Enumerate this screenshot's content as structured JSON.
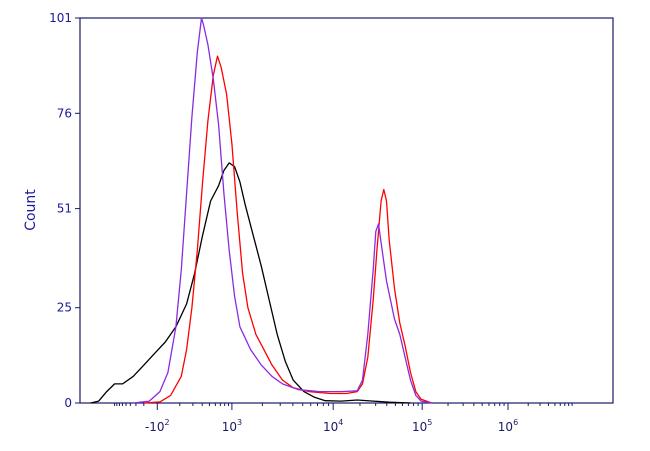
{
  "chart_data": {
    "type": "line",
    "ylabel": "Count",
    "ylim": [
      0,
      101
    ],
    "yticks": [
      {
        "value": 0,
        "label": "0"
      },
      {
        "value": 25,
        "label": "25"
      },
      {
        "value": 51,
        "label": "51"
      },
      {
        "value": 76,
        "label": "76"
      },
      {
        "value": 101,
        "label": "101"
      }
    ],
    "x_scale": "biexponential",
    "xticks": [
      {
        "pos": 0.145,
        "base": "-10",
        "exp": "2"
      },
      {
        "pos": 0.285,
        "base": "10",
        "exp": "3"
      },
      {
        "pos": 0.475,
        "base": "10",
        "exp": "4"
      },
      {
        "pos": 0.642,
        "base": "10",
        "exp": "5"
      },
      {
        "pos": 0.803,
        "base": "10",
        "exp": "6"
      }
    ],
    "series": [
      {
        "color": "#000000",
        "points": [
          [
            0.02,
            0
          ],
          [
            0.035,
            0.5
          ],
          [
            0.05,
            3
          ],
          [
            0.065,
            5
          ],
          [
            0.08,
            5
          ],
          [
            0.1,
            7
          ],
          [
            0.12,
            10
          ],
          [
            0.14,
            13
          ],
          [
            0.16,
            16
          ],
          [
            0.18,
            20
          ],
          [
            0.2,
            26
          ],
          [
            0.215,
            34
          ],
          [
            0.23,
            44
          ],
          [
            0.245,
            53
          ],
          [
            0.26,
            57
          ],
          [
            0.27,
            61
          ],
          [
            0.28,
            63
          ],
          [
            0.29,
            62
          ],
          [
            0.3,
            58
          ],
          [
            0.31,
            52
          ],
          [
            0.325,
            44
          ],
          [
            0.34,
            36
          ],
          [
            0.355,
            27
          ],
          [
            0.37,
            18
          ],
          [
            0.385,
            11
          ],
          [
            0.4,
            6
          ],
          [
            0.42,
            3
          ],
          [
            0.44,
            1.5
          ],
          [
            0.46,
            0.6
          ],
          [
            0.49,
            0.5
          ],
          [
            0.52,
            0.8
          ],
          [
            0.55,
            0.5
          ],
          [
            0.58,
            0.2
          ],
          [
            0.62,
            0
          ]
        ]
      },
      {
        "color": "#ff0000",
        "points": [
          [
            0.12,
            0
          ],
          [
            0.15,
            0.3
          ],
          [
            0.17,
            2
          ],
          [
            0.19,
            7
          ],
          [
            0.2,
            14
          ],
          [
            0.21,
            25
          ],
          [
            0.22,
            40
          ],
          [
            0.23,
            58
          ],
          [
            0.24,
            74
          ],
          [
            0.25,
            86
          ],
          [
            0.258,
            91
          ],
          [
            0.265,
            88
          ],
          [
            0.275,
            81
          ],
          [
            0.285,
            68
          ],
          [
            0.295,
            50
          ],
          [
            0.305,
            34
          ],
          [
            0.315,
            25
          ],
          [
            0.33,
            18
          ],
          [
            0.345,
            14
          ],
          [
            0.36,
            10
          ],
          [
            0.38,
            6
          ],
          [
            0.4,
            4
          ],
          [
            0.43,
            3
          ],
          [
            0.47,
            2.5
          ],
          [
            0.5,
            2.5
          ],
          [
            0.52,
            3
          ],
          [
            0.53,
            5
          ],
          [
            0.54,
            12
          ],
          [
            0.55,
            27
          ],
          [
            0.557,
            40
          ],
          [
            0.565,
            53
          ],
          [
            0.57,
            56
          ],
          [
            0.575,
            53
          ],
          [
            0.58,
            43
          ],
          [
            0.59,
            30
          ],
          [
            0.6,
            21
          ],
          [
            0.61,
            15
          ],
          [
            0.62,
            8
          ],
          [
            0.63,
            3
          ],
          [
            0.64,
            1
          ],
          [
            0.66,
            0
          ]
        ]
      },
      {
        "color": "#8a2be2",
        "points": [
          [
            0.1,
            0
          ],
          [
            0.13,
            0.5
          ],
          [
            0.15,
            3
          ],
          [
            0.165,
            8
          ],
          [
            0.18,
            20
          ],
          [
            0.19,
            35
          ],
          [
            0.2,
            55
          ],
          [
            0.21,
            75
          ],
          [
            0.22,
            92
          ],
          [
            0.228,
            101
          ],
          [
            0.232,
            99
          ],
          [
            0.24,
            94
          ],
          [
            0.25,
            85
          ],
          [
            0.26,
            73
          ],
          [
            0.27,
            55
          ],
          [
            0.28,
            40
          ],
          [
            0.29,
            28
          ],
          [
            0.3,
            20
          ],
          [
            0.32,
            14
          ],
          [
            0.34,
            10
          ],
          [
            0.36,
            7
          ],
          [
            0.38,
            5
          ],
          [
            0.41,
            3.5
          ],
          [
            0.45,
            3
          ],
          [
            0.49,
            3
          ],
          [
            0.52,
            3.2
          ],
          [
            0.53,
            6
          ],
          [
            0.54,
            18
          ],
          [
            0.55,
            35
          ],
          [
            0.555,
            45
          ],
          [
            0.56,
            47
          ],
          [
            0.565,
            42
          ],
          [
            0.575,
            32
          ],
          [
            0.59,
            22
          ],
          [
            0.6,
            18
          ],
          [
            0.61,
            12
          ],
          [
            0.62,
            6
          ],
          [
            0.63,
            2
          ],
          [
            0.64,
            0.5
          ],
          [
            0.66,
            0
          ]
        ]
      }
    ]
  }
}
